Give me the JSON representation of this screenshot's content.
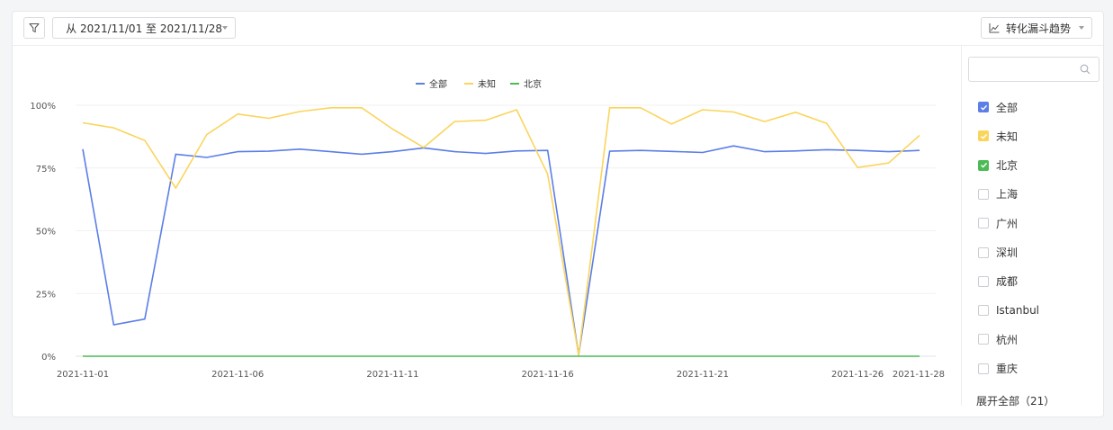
{
  "toolbar": {
    "date_range_label": "从 2021/11/01 至 2021/11/28",
    "trend_label": "转化漏斗趋势"
  },
  "icons": {
    "filter": "filter-icon",
    "calendar": "calendar-icon",
    "trend": "line-chart-icon",
    "search": "search-icon"
  },
  "sidebar": {
    "search_placeholder": "",
    "items": [
      {
        "label": "全部",
        "checked": true,
        "color": "#5b7ee8"
      },
      {
        "label": "未知",
        "checked": true,
        "color": "#fad55c"
      },
      {
        "label": "北京",
        "checked": true,
        "color": "#4cbb55"
      },
      {
        "label": "上海",
        "checked": false,
        "color": ""
      },
      {
        "label": "广州",
        "checked": false,
        "color": ""
      },
      {
        "label": "深圳",
        "checked": false,
        "color": ""
      },
      {
        "label": "成都",
        "checked": false,
        "color": ""
      },
      {
        "label": "Istanbul",
        "checked": false,
        "color": ""
      },
      {
        "label": "杭州",
        "checked": false,
        "color": ""
      },
      {
        "label": "重庆",
        "checked": false,
        "color": ""
      }
    ],
    "expand_label": "展开全部（21）"
  },
  "chart_data": {
    "type": "line",
    "x": [
      "2021-11-01",
      "2021-11-02",
      "2021-11-03",
      "2021-11-04",
      "2021-11-05",
      "2021-11-06",
      "2021-11-07",
      "2021-11-08",
      "2021-11-09",
      "2021-11-10",
      "2021-11-11",
      "2021-11-12",
      "2021-11-13",
      "2021-11-14",
      "2021-11-15",
      "2021-11-16",
      "2021-11-17",
      "2021-11-18",
      "2021-11-19",
      "2021-11-20",
      "2021-11-21",
      "2021-11-22",
      "2021-11-23",
      "2021-11-24",
      "2021-11-25",
      "2021-11-26",
      "2021-11-27",
      "2021-11-28"
    ],
    "x_tick_labels": [
      "2021-11-01",
      "2021-11-06",
      "2021-11-11",
      "2021-11-16",
      "2021-11-21",
      "2021-11-26",
      "2021-11-28"
    ],
    "y_tick_labels": [
      "0%",
      "25%",
      "50%",
      "75%",
      "100%"
    ],
    "ylim": [
      0,
      100
    ],
    "grid": true,
    "legend_position": "top-center",
    "series": [
      {
        "name": "全部",
        "color": "#5b7ee8",
        "values": [
          82.5,
          12.5,
          14.8,
          80.5,
          79.2,
          81.5,
          81.7,
          82.5,
          81.5,
          80.5,
          81.5,
          83,
          81.5,
          80.8,
          81.8,
          82,
          0.5,
          81.7,
          82,
          81.6,
          81.2,
          83.8,
          81.5,
          81.8,
          82.3,
          82,
          81.5,
          82
        ]
      },
      {
        "name": "未知",
        "color": "#fad55c",
        "values": [
          93,
          91,
          86,
          67,
          88.3,
          96.5,
          94.8,
          97.5,
          99,
          99,
          90.5,
          83.2,
          93.5,
          94,
          98.2,
          72.5,
          0.5,
          99,
          99,
          92.5,
          98.2,
          97.3,
          93.5,
          97.2,
          92.8,
          75.2,
          77,
          88
        ]
      },
      {
        "name": "北京",
        "color": "#4cbb55",
        "values": [
          0,
          0,
          0,
          0,
          0,
          0,
          0,
          0,
          0,
          0,
          0,
          0,
          0,
          0,
          0,
          0,
          0,
          0,
          0,
          0,
          0,
          0,
          0,
          0,
          0,
          0,
          0,
          0
        ]
      }
    ]
  }
}
